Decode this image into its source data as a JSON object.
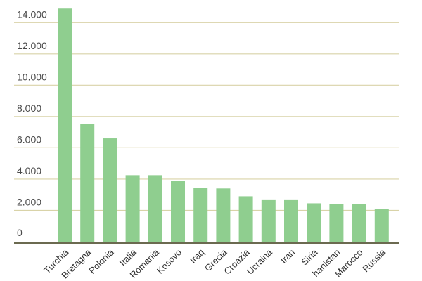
{
  "chart_data": {
    "type": "bar",
    "title": "",
    "xlabel": "",
    "ylabel": "",
    "categories": [
      "Turchia",
      "Bretagna",
      "Polonia",
      "Italia",
      "Romania",
      "Kosovo",
      "Iraq",
      "Grecia",
      "Croazia",
      "Ucraina",
      "Iran",
      "Siria",
      "hanistan",
      "Marocco",
      "Russia"
    ],
    "values": [
      14900,
      7500,
      6600,
      4250,
      4250,
      3900,
      3450,
      3400,
      2900,
      2700,
      2700,
      2450,
      2400,
      2400,
      2100
    ],
    "ylim": [
      0,
      15000
    ],
    "yticks": [
      0,
      2000,
      4000,
      6000,
      8000,
      10000,
      12000,
      14000
    ],
    "ytick_labels": [
      "0",
      "2.000",
      "4.000",
      "6.000",
      "8.000",
      "10.000",
      "12.000",
      "14.000"
    ],
    "grid": true,
    "legend": "none",
    "colors": {
      "bar": "#8fce8f",
      "grid": "#d9d3a8",
      "baseline": "#6b6a50",
      "background": "#ffffff"
    }
  }
}
